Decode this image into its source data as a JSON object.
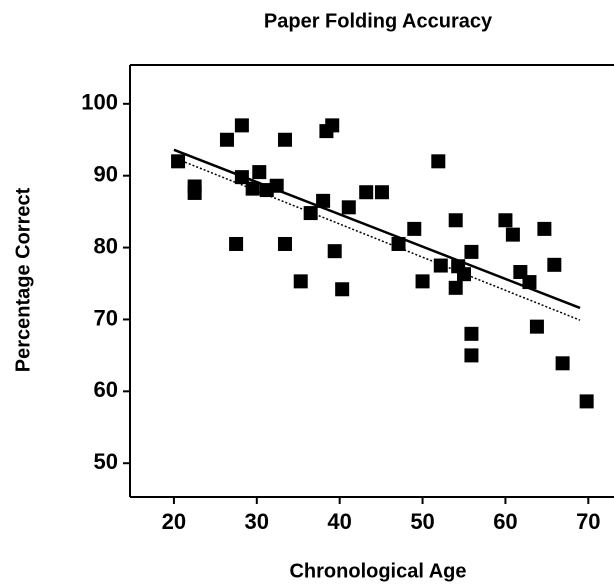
{
  "chart_data": {
    "type": "scatter",
    "title": "Paper Folding Accuracy",
    "xlabel": "Chronological Age",
    "ylabel": "Percentage Correct",
    "x": [
      20.5,
      22.5,
      22.5,
      26.4,
      28.2,
      27.5,
      28.2,
      29.5,
      30.3,
      31.2,
      32.4,
      33.4,
      33.4,
      35.3,
      36.5,
      38,
      38.4,
      39.1,
      39.4,
      40.3,
      41.1,
      43.2,
      45.1,
      47.1,
      49,
      50,
      51.9,
      52.2,
      54,
      54,
      54.3,
      55,
      55.9,
      55.9,
      55.9,
      60,
      60.9,
      61.8,
      62.9,
      63.8,
      64.7,
      65.9,
      66.9,
      69.8
    ],
    "values": [
      92,
      88.5,
      87.6,
      95,
      97,
      80.5,
      89.8,
      88.2,
      90.5,
      88,
      88.6,
      95,
      80.5,
      75.3,
      84.8,
      86.5,
      96.2,
      97,
      79.5,
      74.2,
      85.6,
      87.7,
      87.7,
      80.5,
      82.6,
      75.3,
      92,
      77.5,
      83.8,
      74.4,
      77.4,
      76.3,
      79.4,
      68,
      65,
      83.8,
      81.8,
      76.6,
      75.2,
      69,
      82.6,
      77.6,
      63.9,
      58.6
    ],
    "color": "#000000",
    "lines": [
      {
        "style": "solid",
        "x": [
          20,
          69
        ],
        "values": [
          93.6,
          71.6
        ]
      },
      {
        "style": "dotted",
        "x": [
          20,
          69
        ],
        "values": [
          92.5,
          69.9
        ]
      }
    ],
    "xlim": [
      14.7,
      73.1
    ],
    "ylim": [
      45.3,
      105.4
    ],
    "xticks": [
      20,
      30,
      40,
      50,
      60,
      70
    ],
    "yticks": [
      50,
      60,
      70,
      80,
      90,
      100
    ]
  }
}
